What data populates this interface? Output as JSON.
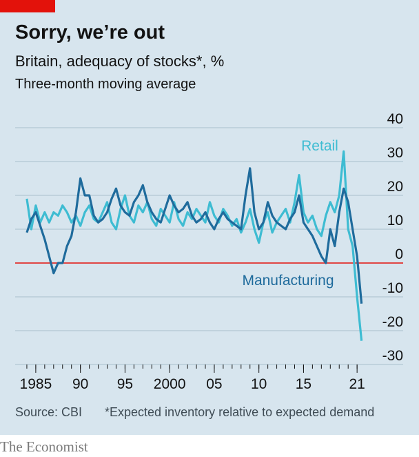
{
  "chart_data": {
    "type": "line",
    "title": "Sorry, we’re out",
    "subtitle": "Britain, adequacy of stocks*, %",
    "subtitle2": "Three-month moving average",
    "source": "Source: CBI",
    "footnote": "*Expected inventory relative to expected demand",
    "brand": "The Economist",
    "annotations": [
      "Retail",
      "Manufacturing"
    ],
    "x": [
      1984,
      1984.5,
      1985,
      1985.5,
      1986,
      1986.5,
      1987,
      1987.5,
      1988,
      1988.5,
      1989,
      1989.5,
      1990,
      1990.5,
      1991,
      1991.5,
      1992,
      1992.5,
      1993,
      1993.5,
      1994,
      1994.5,
      1995,
      1995.5,
      1996,
      1996.5,
      1997,
      1997.5,
      1998,
      1998.5,
      1999,
      1999.5,
      2000,
      2000.5,
      2001,
      2001.5,
      2002,
      2002.5,
      2003,
      2003.5,
      2004,
      2004.5,
      2005,
      2005.5,
      2006,
      2006.5,
      2007,
      2007.5,
      2008,
      2008.5,
      2009,
      2009.5,
      2010,
      2010.5,
      2011,
      2011.5,
      2012,
      2012.5,
      2013,
      2013.5,
      2014,
      2014.5,
      2015,
      2015.5,
      2016,
      2016.5,
      2017,
      2017.5,
      2018,
      2018.5,
      2019,
      2019.5,
      2020,
      2020.5,
      2021,
      2021.5
    ],
    "series": [
      {
        "name": "Retail",
        "color": "#3ebcd2",
        "values": [
          19,
          10,
          17,
          12,
          15,
          12,
          15,
          14,
          17,
          15,
          12,
          14,
          11,
          15,
          17,
          13,
          12,
          15,
          18,
          12,
          10,
          16,
          20,
          14,
          12,
          17,
          15,
          18,
          13,
          11,
          16,
          14,
          12,
          18,
          13,
          11,
          15,
          13,
          16,
          14,
          12,
          18,
          14,
          12,
          16,
          14,
          11,
          13,
          9,
          12,
          16,
          10,
          6,
          12,
          15,
          9,
          12,
          14,
          16,
          12,
          18,
          26,
          15,
          12,
          14,
          10,
          8,
          14,
          18,
          15,
          20,
          33,
          10,
          5,
          -10,
          -23
        ]
      },
      {
        "name": "Manufacturing",
        "color": "#1f6b9c",
        "values": [
          9,
          13,
          15,
          11,
          7,
          2,
          -3,
          0,
          0,
          5,
          8,
          15,
          25,
          20,
          20,
          14,
          12,
          13,
          15,
          19,
          22,
          17,
          15,
          14,
          18,
          20,
          23,
          18,
          15,
          13,
          12,
          16,
          20,
          17,
          15,
          16,
          18,
          14,
          12,
          13,
          15,
          12,
          10,
          13,
          15,
          13,
          12,
          11,
          10,
          20,
          28,
          15,
          10,
          12,
          18,
          14,
          12,
          11,
          10,
          13,
          15,
          20,
          12,
          10,
          8,
          5,
          2,
          0,
          10,
          5,
          15,
          22,
          18,
          10,
          2,
          -12
        ]
      }
    ],
    "xlim": [
      1983,
      2024
    ],
    "xticks": [
      1985,
      {
        "value": 1990,
        "label": "90"
      },
      {
        "value": 1995,
        "label": "95"
      },
      2000,
      {
        "value": 2005,
        "label": "05"
      },
      {
        "value": 2010,
        "label": "10"
      },
      {
        "value": 2015,
        "label": "15"
      },
      {
        "value": 2021,
        "label": "21"
      }
    ],
    "xminorticks": [
      1984,
      1985,
      1986,
      1987,
      1988,
      1989,
      1990,
      1991,
      1992,
      1993,
      1994,
      1995,
      1996,
      1997,
      1998,
      1999,
      2000,
      2001,
      2002,
      2003,
      2004,
      2005,
      2006,
      2007,
      2008,
      2009,
      2010,
      2011,
      2012,
      2013,
      2014,
      2015,
      2016,
      2017,
      2018,
      2019,
      2020,
      2021
    ],
    "ylim": [
      -30,
      40
    ],
    "yticks": [
      40,
      30,
      20,
      10,
      0,
      -10,
      -20,
      -30
    ],
    "grid": true
  }
}
